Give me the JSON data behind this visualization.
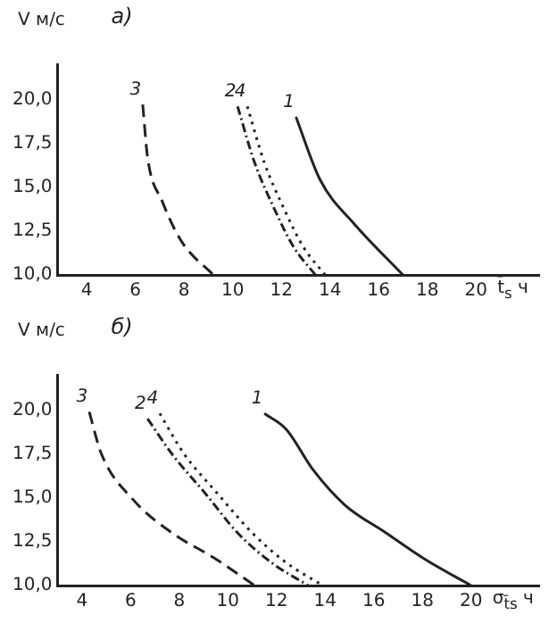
{
  "chart_data": [
    {
      "type": "line",
      "title": "а)",
      "xlabel": "t̄$_{s}$ ч",
      "ylabel": "V м/с",
      "xlim": [
        2.8,
        22.6
      ],
      "ylim": [
        10,
        22
      ],
      "xticks": [
        4,
        6,
        8,
        10,
        12,
        14,
        16,
        18,
        20
      ],
      "yticks": [
        {
          "value": 10,
          "label": "10,0"
        },
        {
          "value": 12.5,
          "label": "12,5"
        },
        {
          "value": 15,
          "label": "15,0"
        },
        {
          "value": 17.5,
          "label": "17,5"
        },
        {
          "value": 20,
          "label": "20,0"
        }
      ],
      "grid": false,
      "legend": false,
      "marker": "none",
      "series": [
        {
          "name": "1",
          "color": "#222222",
          "line_style": "solid",
          "x": [
            12.6,
            13.6,
            15.0,
            17.0
          ],
          "values": [
            19.0,
            15.4,
            12.9,
            10
          ]
        },
        {
          "name": "2",
          "color": "#222222",
          "line_style": "dashdot",
          "x": [
            10.2,
            10.9,
            11.7,
            12.5,
            13.4
          ],
          "values": [
            19.6,
            16.4,
            13.8,
            11.6,
            10
          ]
        },
        {
          "name": "3",
          "color": "#222222",
          "line_style": "dashed",
          "x": [
            6.3,
            6.5,
            7.1,
            7.9,
            9.2
          ],
          "values": [
            19.7,
            16.7,
            14.2,
            11.9,
            10
          ]
        },
        {
          "name": "4",
          "color": "#222222",
          "line_style": "dotted",
          "x": [
            10.6,
            11.3,
            12.1,
            12.9,
            13.8
          ],
          "values": [
            19.6,
            16.4,
            13.8,
            11.6,
            10
          ]
        }
      ]
    },
    {
      "type": "line",
      "title": "б)",
      "xlabel": "σ$_{t̄s}$ ч",
      "ylabel": "V м/с",
      "xlim": [
        3.0,
        22.8
      ],
      "ylim": [
        10,
        22
      ],
      "xticks": [
        4,
        6,
        8,
        10,
        12,
        14,
        16,
        18,
        20
      ],
      "yticks": [
        {
          "value": 10,
          "label": "10,0"
        },
        {
          "value": 12.5,
          "label": "12,5"
        },
        {
          "value": 15,
          "label": "15,0"
        },
        {
          "value": 17.5,
          "label": "17,5"
        },
        {
          "value": 20,
          "label": "20,0"
        }
      ],
      "grid": false,
      "legend": false,
      "marker": "none",
      "series": [
        {
          "name": "1",
          "color": "#222222",
          "line_style": "solid",
          "x": [
            11.5,
            12.4,
            13.5,
            14.8,
            16.5,
            18.1,
            20.0
          ],
          "values": [
            19.8,
            18.9,
            16.6,
            14.6,
            13.0,
            11.5,
            10
          ]
        },
        {
          "name": "2",
          "color": "#222222",
          "line_style": "dashdot",
          "x": [
            6.7,
            7.7,
            9.1,
            10.4,
            11.8,
            13.3
          ],
          "values": [
            19.5,
            17.5,
            15.2,
            13.0,
            11.3,
            10
          ]
        },
        {
          "name": "3",
          "color": "#222222",
          "line_style": "dashed",
          "x": [
            4.3,
            4.8,
            6.1,
            7.7,
            9.4,
            11.1
          ],
          "values": [
            19.9,
            17.5,
            14.9,
            13.0,
            11.6,
            10
          ]
        },
        {
          "name": "4",
          "color": "#222222",
          "line_style": "dotted",
          "x": [
            7.2,
            8.2,
            9.6,
            11.0,
            12.4,
            13.9
          ],
          "values": [
            19.8,
            17.5,
            15.2,
            13.0,
            11.3,
            10
          ]
        }
      ]
    }
  ]
}
